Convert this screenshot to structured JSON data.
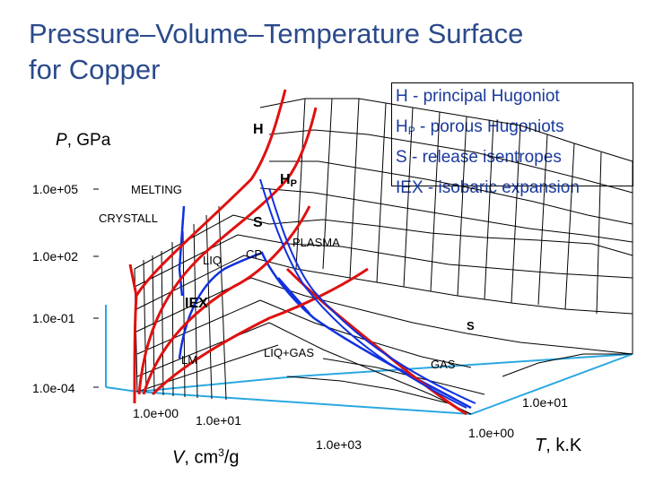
{
  "title_line1": "Pressure–Volume–Temperature Surface",
  "title_line2": "for Copper",
  "legend": [
    {
      "key": "H",
      "sub": "",
      "desc": " - principal Hugoniot"
    },
    {
      "key": "H",
      "sub": "P",
      "desc": " - porous Hugoniots"
    },
    {
      "key": "S",
      "sub": "",
      "desc": "  - release isentropes"
    },
    {
      "key": "IEX",
      "sub": "",
      "desc": " - isobaric expansion"
    }
  ],
  "axes": {
    "pressure": {
      "label": "P",
      "unit": ", GPa",
      "ticks": [
        "1.0e+05",
        "1.0e+02",
        "1.0e-01",
        "1.0e-04"
      ]
    },
    "volume": {
      "label": "V",
      "unit": ", cm",
      "unit_sup": "3",
      "unit_end": "/g",
      "ticks": [
        "1.0e+00",
        "1.0e+01",
        "1.0e+03"
      ]
    },
    "temperature": {
      "label": "T",
      "unit": ", k.K",
      "ticks": [
        "1.0e+00",
        "1.0e+01"
      ]
    }
  },
  "regions": {
    "melting": "MELTING",
    "crystall": "CRYSTALL",
    "liq": "LIQ",
    "cp": "CP",
    "plasma": "PLASMA",
    "liq_gas": "LIQ+GAS",
    "lm": "LM",
    "gas": "GAS"
  },
  "curves": {
    "h": "H",
    "hp": "H",
    "hp_sub": "P",
    "s": "S",
    "iex": "IEX",
    "s2": "S"
  },
  "colors": {
    "title": "#2b4a8c",
    "legend_text": "#1a3a9c",
    "grid": "#000000",
    "hugoniot": "#e01010",
    "isentrope": "#1030e0",
    "axes_box": "#2aa8e0"
  }
}
